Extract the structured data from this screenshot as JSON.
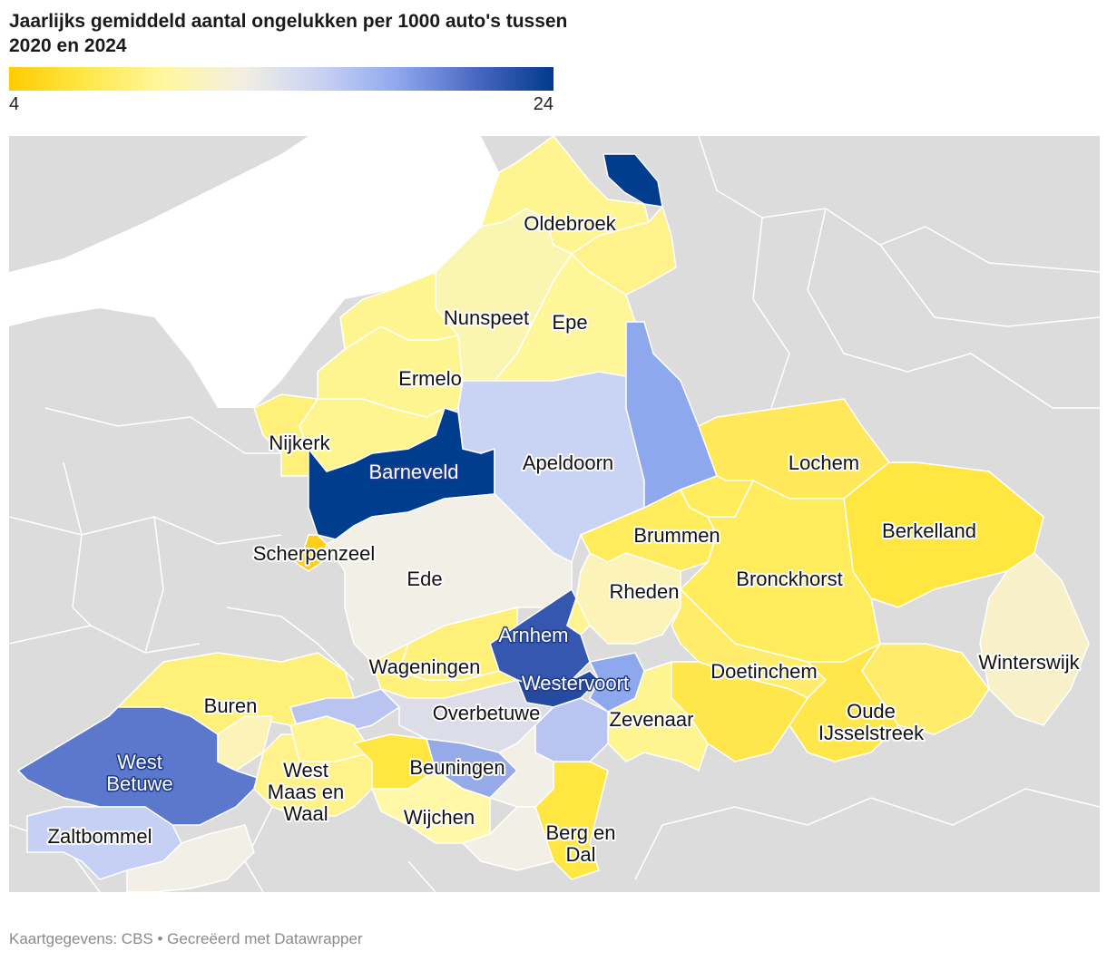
{
  "title": "Jaarlijks gemiddeld aantal ongelukken per 1000 auto's tussen 2020 en 2024",
  "legend": {
    "min_label": "4",
    "max_label": "24",
    "gradient": [
      "#ffcc00",
      "#ffe84a",
      "#fff7a0",
      "#f2efe4",
      "#c9d2f3",
      "#8ea8ee",
      "#4a68c2",
      "#003a8c"
    ]
  },
  "footer": "Kaartgegevens: CBS • Gecreëerd met Datawrapper",
  "colors": {
    "background_land": "#dcdcdc",
    "land_border": "#ffffff"
  },
  "municipalities": [
    {
      "id": "oldebroek",
      "label": "Oldebroek",
      "color": "#fff590",
      "dark": false
    },
    {
      "id": "nunspeet",
      "label": "Nunspeet",
      "color": "#fbf5b2",
      "dark": false
    },
    {
      "id": "epe",
      "label": "Epe",
      "color": "#fff699",
      "dark": false
    },
    {
      "id": "ermelo",
      "label": "Ermelo",
      "color": "#fff590",
      "dark": false
    },
    {
      "id": "nijkerk",
      "label": "Nijkerk",
      "color": "#fff07a",
      "dark": false
    },
    {
      "id": "barneveld",
      "label": "Barneveld",
      "color": "#003d8f",
      "dark": true
    },
    {
      "id": "apeldoorn",
      "label": "Apeldoorn",
      "color": "#c9d3f4",
      "dark": false
    },
    {
      "id": "scherpenzeel",
      "label": "Scherpenzeel",
      "color": "#ffce1a",
      "dark": false
    },
    {
      "id": "ede",
      "label": "Ede",
      "color": "#f2efe6",
      "dark": false
    },
    {
      "id": "lochem",
      "label": "Lochem",
      "color": "#ffe85a",
      "dark": false
    },
    {
      "id": "brummen",
      "label": "Brummen",
      "color": "#ffec5c",
      "dark": false
    },
    {
      "id": "berkelland",
      "label": "Berkelland",
      "color": "#ffe640",
      "dark": false
    },
    {
      "id": "bronckhorst",
      "label": "Bronckhorst",
      "color": "#ffec5c",
      "dark": false
    },
    {
      "id": "rheden",
      "label": "Rheden",
      "color": "#fbf3b8",
      "dark": false
    },
    {
      "id": "arnhem",
      "label": "Arnhem",
      "color": "#3557b0",
      "dark": true
    },
    {
      "id": "wageningen",
      "label": "Wageningen",
      "color": "#fff07a",
      "dark": false
    },
    {
      "id": "westervoort",
      "label": "Westervoort",
      "color": "#264aa0",
      "dark": true
    },
    {
      "id": "doetinchem",
      "label": "Doetinchem",
      "color": "#ffec6a",
      "dark": false
    },
    {
      "id": "winterswijk",
      "label": "Winterswijk",
      "color": "#f7f0c8",
      "dark": false
    },
    {
      "id": "buren",
      "label": "Buren",
      "color": "#fff07a",
      "dark": false
    },
    {
      "id": "overbetuwe",
      "label": "Overbetuwe",
      "color": "#dcdde8",
      "dark": false
    },
    {
      "id": "zevenaar",
      "label": "Zevenaar",
      "color": "#fff590",
      "dark": false
    },
    {
      "id": "oude-ijsselstreek",
      "label": "Oude IJsselstreek",
      "color": "#ffe64a",
      "dark": false
    },
    {
      "id": "west-betuwe",
      "label": "West Betuwe",
      "color": "#5c78cc",
      "dark": true
    },
    {
      "id": "west-maas-en-waal",
      "label": "West Maas en Waal",
      "color": "#fff28a",
      "dark": false
    },
    {
      "id": "beuningen",
      "label": "Beuningen",
      "color": "#95aae6",
      "dark": false
    },
    {
      "id": "wijchen",
      "label": "Wijchen",
      "color": "#fff8a8",
      "dark": false
    },
    {
      "id": "zaltbommel",
      "label": "Zaltbommel",
      "color": "#c5d0f4",
      "dark": false
    },
    {
      "id": "berg-en-dal",
      "label": "Berg en Dal",
      "color": "#ffe640",
      "dark": false
    },
    {
      "id": "hattem",
      "label": "",
      "color": "#003d8f",
      "dark": true
    },
    {
      "id": "heerde",
      "label": "",
      "color": "#fff28a",
      "dark": false
    },
    {
      "id": "harderwijk",
      "label": "",
      "color": "#fff590",
      "dark": false
    },
    {
      "id": "putten",
      "label": "",
      "color": "#fff590",
      "dark": false
    },
    {
      "id": "voorst",
      "label": "",
      "color": "#8ea8ee",
      "dark": false
    },
    {
      "id": "zutphen",
      "label": "",
      "color": "#ffec5c",
      "dark": false
    },
    {
      "id": "rozendaal",
      "label": "",
      "color": "#fff590",
      "dark": false
    },
    {
      "id": "renkum",
      "label": "",
      "color": "#fff07a",
      "dark": false
    },
    {
      "id": "duiven",
      "label": "",
      "color": "#8ea8ee",
      "dark": false
    },
    {
      "id": "lingewaard",
      "label": "",
      "color": "#b9c5f0",
      "dark": false
    },
    {
      "id": "nijmegen",
      "label": "",
      "color": "#f2efe6",
      "dark": false
    },
    {
      "id": "heumen",
      "label": "",
      "color": "#f2efe6",
      "dark": false
    },
    {
      "id": "montferland",
      "label": "",
      "color": "#ffe64a",
      "dark": false
    },
    {
      "id": "aalten",
      "label": "",
      "color": "#ffec6a",
      "dark": false
    },
    {
      "id": "culemborg",
      "label": "",
      "color": "#fbf3b8",
      "dark": false
    },
    {
      "id": "neder-betuwe",
      "label": "",
      "color": "#b9c5f0",
      "dark": false
    },
    {
      "id": "tiel",
      "label": "",
      "color": "#fff590",
      "dark": false
    },
    {
      "id": "maasdriel",
      "label": "",
      "color": "#f2efe6",
      "dark": false
    },
    {
      "id": "druten",
      "label": "",
      "color": "#ffe640",
      "dark": false
    }
  ]
}
